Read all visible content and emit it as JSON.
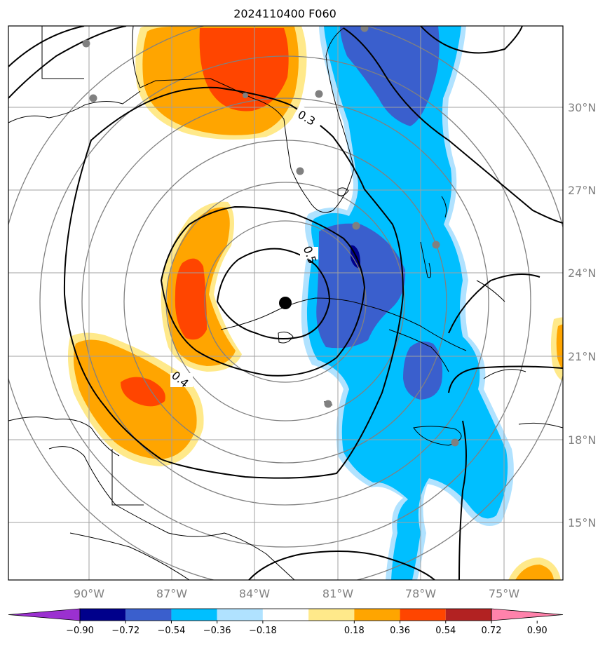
{
  "title": "2024110400 F060",
  "lon_labels": [
    "90°W",
    "87°W",
    "84°W",
    "81°W",
    "78°W",
    "75°W"
  ],
  "lat_labels": [
    "30°N",
    "27°N",
    "24°N",
    "21°N",
    "18°N",
    "15°N"
  ],
  "contour_labels": [
    "0.3",
    "0.5",
    "0.4"
  ],
  "colorbar": {
    "ticks": [
      "−0.90",
      "−0.72",
      "−0.54",
      "−0.36",
      "−0.18",
      "0.18",
      "0.36",
      "0.54",
      "0.72",
      "0.90"
    ],
    "colors": [
      "#9b30d0",
      "#00008b",
      "#3a5fcd",
      "#00bfff",
      "#b0e2ff",
      "#ffffff",
      "#ffe98a",
      "#ffa500",
      "#ff4500",
      "#b22222",
      "#ff82ab"
    ]
  },
  "colors": {
    "neg_dark": "#00008b",
    "neg_mid": "#3a5fcd",
    "neg_light": "#00bfff",
    "neg_pale": "#b0e2ff",
    "pos_pale": "#ffe98a",
    "pos_light": "#ffa500",
    "pos_mid": "#ff4500"
  }
}
